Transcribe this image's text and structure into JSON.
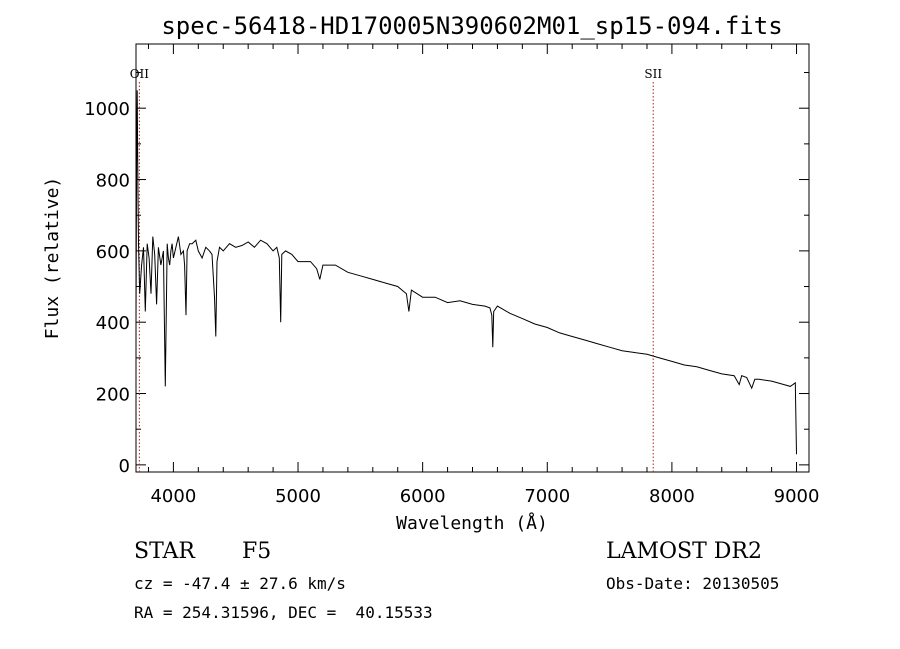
{
  "chart_data": {
    "type": "line",
    "title": "spec-56418-HD170005N390602M01_sp15-094.fits",
    "xlabel": "Wavelength (Å)",
    "ylabel": "Flux (relative)",
    "xlim": [
      3700,
      9100
    ],
    "ylim": [
      -20,
      1180
    ],
    "x_ticks": [
      4000,
      5000,
      6000,
      7000,
      8000,
      9000
    ],
    "y_ticks": [
      0,
      200,
      400,
      600,
      800,
      1000
    ],
    "grid": false,
    "series": [
      {
        "x": [
          3700,
          3705,
          3710,
          3715,
          3720,
          3730,
          3745,
          3760,
          3775,
          3790,
          3805,
          3820,
          3835,
          3850,
          3865,
          3880,
          3900,
          3920,
          3935,
          3950,
          3960,
          3970,
          3980,
          3990,
          4000,
          4020,
          4040,
          4060,
          4080,
          4090,
          4101,
          4110,
          4130,
          4150,
          4180,
          4200,
          4230,
          4260,
          4290,
          4310,
          4330,
          4340,
          4350,
          4370,
          4400,
          4450,
          4500,
          4550,
          4600,
          4650,
          4700,
          4750,
          4800,
          4830,
          4850,
          4861,
          4870,
          4900,
          4950,
          5000,
          5100,
          5150,
          5175,
          5200,
          5300,
          5400,
          5500,
          5600,
          5700,
          5800,
          5870,
          5890,
          5910,
          6000,
          6100,
          6200,
          6300,
          6400,
          6500,
          6540,
          6555,
          6563,
          6570,
          6600,
          6700,
          6800,
          6900,
          7000,
          7100,
          7200,
          7300,
          7400,
          7500,
          7600,
          7700,
          7800,
          7900,
          8000,
          8100,
          8200,
          8300,
          8400,
          8500,
          8540,
          8560,
          8600,
          8640,
          8665,
          8700,
          8800,
          8900,
          8950,
          8990,
          9000
        ],
        "y": [
          400,
          850,
          1050,
          780,
          620,
          480,
          560,
          610,
          430,
          620,
          580,
          480,
          640,
          590,
          450,
          610,
          560,
          600,
          220,
          620,
          580,
          560,
          600,
          620,
          580,
          610,
          640,
          590,
          600,
          560,
          420,
          600,
          620,
          620,
          630,
          600,
          580,
          610,
          600,
          590,
          470,
          360,
          570,
          610,
          600,
          620,
          610,
          615,
          625,
          610,
          630,
          620,
          600,
          610,
          580,
          400,
          590,
          600,
          590,
          570,
          570,
          550,
          520,
          560,
          560,
          540,
          530,
          520,
          510,
          500,
          480,
          430,
          490,
          470,
          470,
          455,
          460,
          450,
          445,
          440,
          420,
          330,
          430,
          445,
          425,
          410,
          395,
          385,
          370,
          360,
          350,
          340,
          330,
          320,
          315,
          310,
          300,
          290,
          280,
          275,
          265,
          255,
          250,
          225,
          250,
          245,
          215,
          240,
          240,
          235,
          225,
          220,
          230,
          30
        ]
      }
    ],
    "annotations": [
      {
        "label": "OII",
        "x": 3727
      },
      {
        "label": "SII",
        "x": 7850
      }
    ]
  },
  "info": {
    "object_class": "STAR",
    "subclass": "F5",
    "survey": "LAMOST DR2",
    "cz": "cz = -47.4 ± 27.6 km/s",
    "obs_date": "Obs-Date: 20130505",
    "coords": "RA = 254.31596, DEC =  40.15533"
  }
}
